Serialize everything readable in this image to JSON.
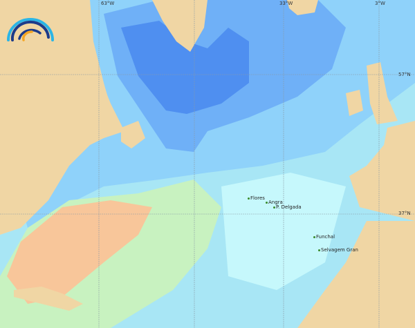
{
  "map": {
    "colors": {
      "land": "#f0d6a4",
      "deep": "#4f8ff0",
      "mid": "#6fb0f7",
      "shallow": "#8fd2fa",
      "light": "#b5f0fb",
      "warm": "#f8c69a",
      "green": "#c8f2c0",
      "grid": "#8a9aa6"
    },
    "grid_labels": {
      "lon": [
        "63°W",
        "33°W",
        "3°W"
      ],
      "lat": [
        "57°N",
        "37°N"
      ]
    },
    "places": [
      {
        "name": "Flores"
      },
      {
        "name": "Angra"
      },
      {
        "name": "P. Delgada"
      },
      {
        "name": "Funchal"
      },
      {
        "name": "Selvagem Gran"
      }
    ],
    "logo": {
      "icon": "wave-arcs-logo",
      "colors": [
        "#2bb5e6",
        "#1c3b8a",
        "#f5a623"
      ]
    }
  }
}
